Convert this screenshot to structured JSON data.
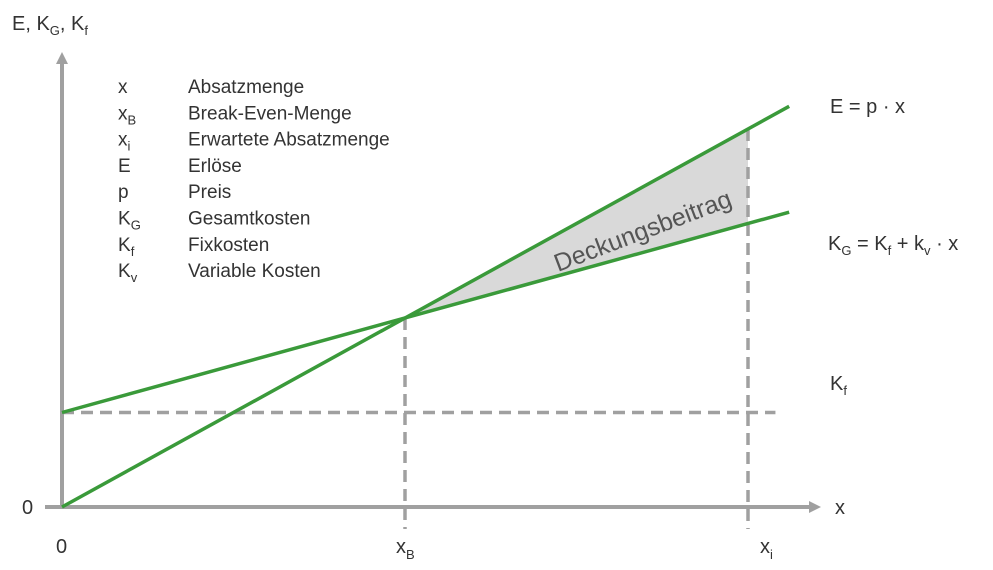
{
  "chart_data": {
    "type": "line",
    "x": [
      0,
      1,
      2
    ],
    "x_tick_labels": [
      "0",
      "x_B",
      "x_i"
    ],
    "series": [
      {
        "name": "E = p · x",
        "values": [
          0,
          1,
          2
        ]
      },
      {
        "name": "K_G = K_f + k_v · x",
        "values": [
          0.5,
          1,
          1.5
        ]
      },
      {
        "name": "K_f",
        "values": [
          0.5,
          0.5,
          0.5
        ]
      }
    ],
    "ylabel": "E, K_G, K_f",
    "xlabel": "x",
    "y_tick_label": "0",
    "region_label": "Deckungsbeitrag",
    "legend": [
      {
        "key": "x",
        "sub": "",
        "desc": "Absatzmenge"
      },
      {
        "key": "x",
        "sub": "B",
        "desc": "Break-Even-Menge"
      },
      {
        "key": "x",
        "sub": "i",
        "desc": "Erwartete Absatzmenge"
      },
      {
        "key": "E",
        "sub": "",
        "desc": "Erlöse"
      },
      {
        "key": "p",
        "sub": "",
        "desc": "Preis"
      },
      {
        "key": "K",
        "sub": "G",
        "desc": "Gesamtkosten"
      },
      {
        "key": "K",
        "sub": "f",
        "desc": "Fixkosten"
      },
      {
        "key": "K",
        "sub": "v",
        "desc": "Variable Kosten"
      }
    ],
    "colors": {
      "line": "#3a9a3a",
      "axis": "#a0a0a0",
      "area": "#d9d9d9"
    }
  }
}
